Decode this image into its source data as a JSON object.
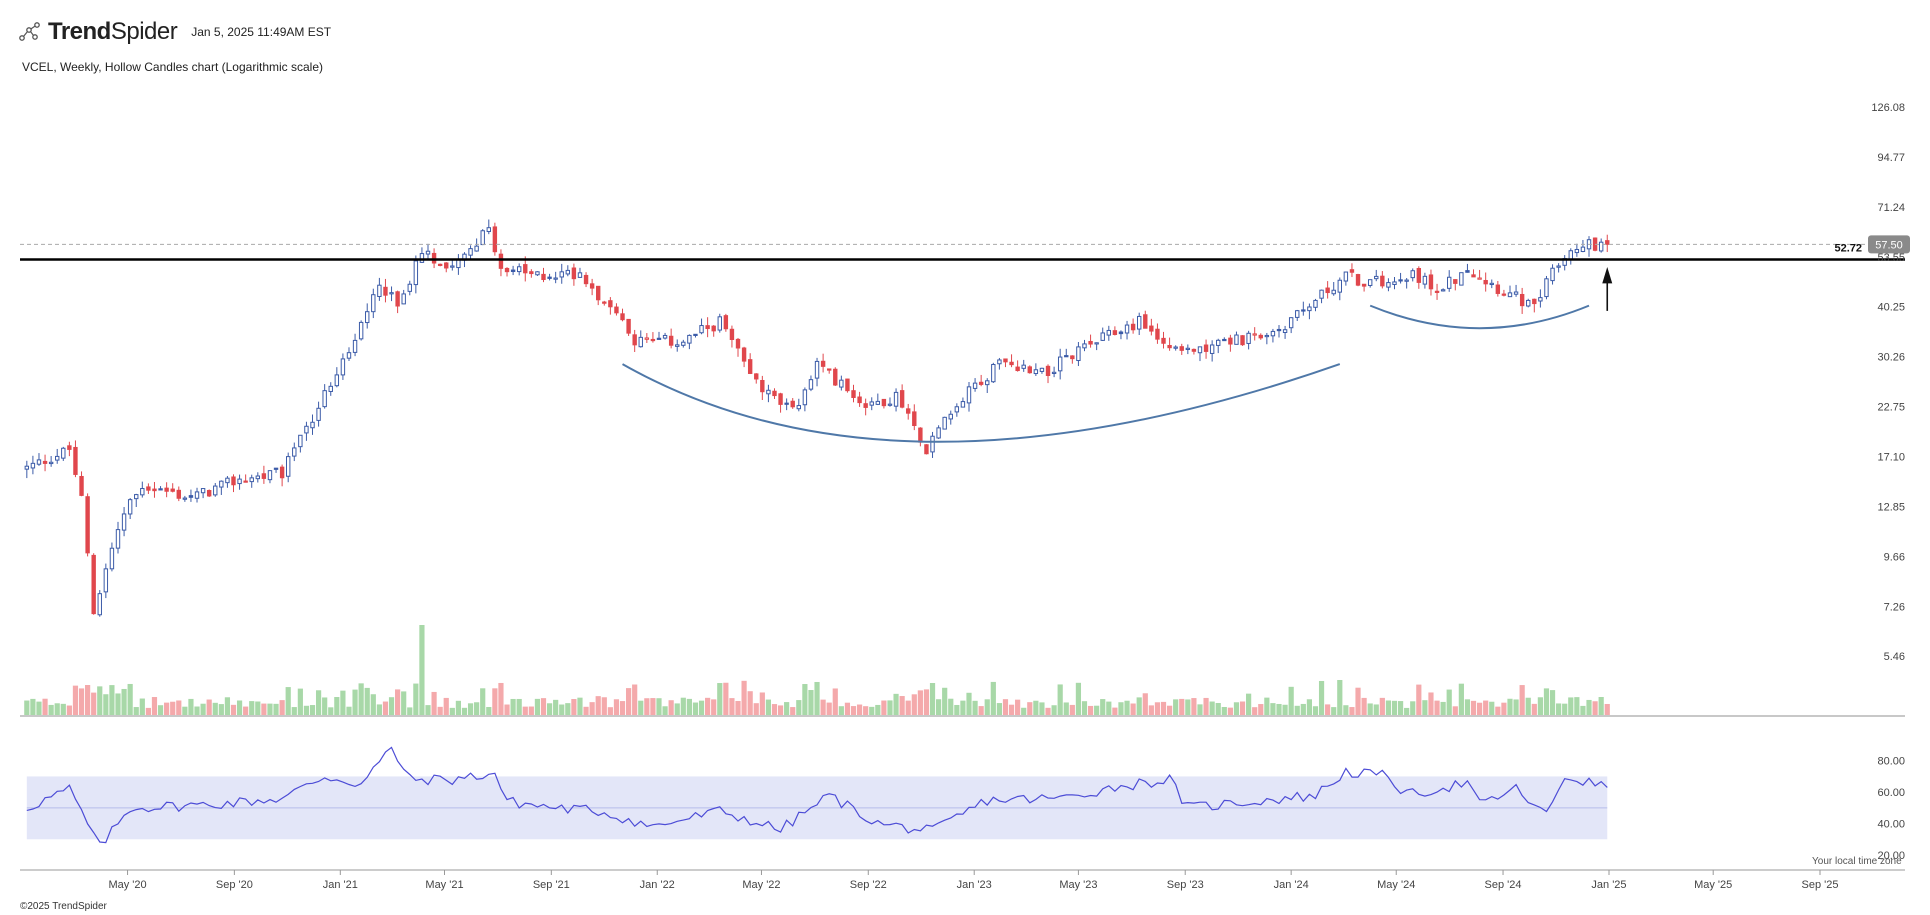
{
  "header": {
    "brand_bold": "Trend",
    "brand_light": "Spider",
    "timestamp": "Jan 5, 2025 11:49AM EST"
  },
  "subtitle": "VCEL, Weekly, Hollow Candles chart (Logarithmic scale)",
  "footer": {
    "copyright": "©2025 TrendSpider",
    "local_time_note": "Your local time zone"
  },
  "colors": {
    "up": "#3b5ba8",
    "down": "#e0474c",
    "vol_up": "#a8d8a8",
    "vol_down": "#f4a9ab",
    "rsi_line": "#4c4cd6",
    "rsi_band": "#e3e6f8",
    "arc": "#4f78a8",
    "support": "#000000"
  },
  "chart_data": [
    {
      "type": "candlestick",
      "title": "VCEL, Weekly, Hollow Candles chart (Logarithmic scale)",
      "y_scale": "log",
      "ylim": [
        4.3,
        135
      ],
      "y_ticks": [
        "126.08",
        "94.77",
        "71.24",
        "53.55",
        "40.25",
        "30.26",
        "22.75",
        "17.10",
        "12.85",
        "9.66",
        "7.26",
        "5.46"
      ],
      "x_ticks": [
        "May '20",
        "Sep '20",
        "Jan '21",
        "May '21",
        "Sep '21",
        "Jan '22",
        "May '22",
        "Sep '22",
        "Jan '23",
        "May '23",
        "Sep '23",
        "Jan '24",
        "May '24",
        "Sep '24",
        "Jan '25",
        "May '25",
        "Sep '25"
      ],
      "support_line": {
        "value": 52.72,
        "label": "52.72"
      },
      "last_price": {
        "value": 57.5,
        "label": "57.50"
      },
      "annotations": [
        "rounded bottom arc (Nov '21 – Mar '24)",
        "rounded bottom arc (Apr '24 – Dec '24)",
        "up arrow near Jan '25"
      ],
      "close_path": [
        {
          "date": "2020-01-06",
          "close": 16.0
        },
        {
          "date": "2020-02-24",
          "close": 17.8
        },
        {
          "date": "2020-03-09",
          "close": 13.5
        },
        {
          "date": "2020-03-23",
          "close": 7.0
        },
        {
          "date": "2020-04-20",
          "close": 11.5
        },
        {
          "date": "2020-05-18",
          "close": 14.5
        },
        {
          "date": "2020-07-13",
          "close": 13.5
        },
        {
          "date": "2020-09-07",
          "close": 15.0
        },
        {
          "date": "2020-10-26",
          "close": 15.5
        },
        {
          "date": "2020-11-23",
          "close": 20.0
        },
        {
          "date": "2020-12-21",
          "close": 26.0
        },
        {
          "date": "2021-01-18",
          "close": 33.0
        },
        {
          "date": "2021-02-15",
          "close": 47.0
        },
        {
          "date": "2021-03-08",
          "close": 40.0
        },
        {
          "date": "2021-04-05",
          "close": 55.0
        },
        {
          "date": "2021-05-03",
          "close": 51.0
        },
        {
          "date": "2021-06-21",
          "close": 62.0
        },
        {
          "date": "2021-07-05",
          "close": 50.0
        },
        {
          "date": "2021-08-16",
          "close": 48.0
        },
        {
          "date": "2021-10-04",
          "close": 49.0
        },
        {
          "date": "2021-11-08",
          "close": 40.0
        },
        {
          "date": "2021-12-06",
          "close": 33.0
        },
        {
          "date": "2022-01-31",
          "close": 33.0
        },
        {
          "date": "2022-03-14",
          "close": 37.0
        },
        {
          "date": "2022-05-02",
          "close": 25.0
        },
        {
          "date": "2022-06-06",
          "close": 22.0
        },
        {
          "date": "2022-07-04",
          "close": 29.0
        },
        {
          "date": "2022-08-29",
          "close": 23.0
        },
        {
          "date": "2022-10-03",
          "close": 24.0
        },
        {
          "date": "2022-11-07",
          "close": 18.0
        },
        {
          "date": "2022-12-19",
          "close": 24.0
        },
        {
          "date": "2023-01-30",
          "close": 29.0
        },
        {
          "date": "2023-03-27",
          "close": 28.0
        },
        {
          "date": "2023-05-22",
          "close": 33.0
        },
        {
          "date": "2023-07-10",
          "close": 37.0
        },
        {
          "date": "2023-08-21",
          "close": 31.0
        },
        {
          "date": "2023-10-16",
          "close": 33.0
        },
        {
          "date": "2023-12-11",
          "close": 34.0
        },
        {
          "date": "2024-01-29",
          "close": 42.0
        },
        {
          "date": "2024-03-04",
          "close": 48.0
        },
        {
          "date": "2024-04-01",
          "close": 46.0
        },
        {
          "date": "2024-05-20",
          "close": 49.0
        },
        {
          "date": "2024-06-17",
          "close": 44.0
        },
        {
          "date": "2024-07-22",
          "close": 50.0
        },
        {
          "date": "2024-09-02",
          "close": 44.0
        },
        {
          "date": "2024-10-07",
          "close": 40.0
        },
        {
          "date": "2024-10-28",
          "close": 50.0
        },
        {
          "date": "2024-11-18",
          "close": 57.0
        },
        {
          "date": "2024-12-30",
          "close": 57.5
        }
      ]
    },
    {
      "type": "bar",
      "title": "Volume",
      "volume_spike_dates": [
        "2020-03-16",
        "2021-04-05",
        "2022-11-14",
        "2024-02-26"
      ]
    },
    {
      "type": "line",
      "title": "RSI",
      "ylim": [
        20,
        90
      ],
      "y_ticks": [
        "80.00",
        "60.00",
        "40.00",
        "20.00"
      ],
      "band": [
        30,
        70
      ],
      "mid_line": 50,
      "series": [
        {
          "date": "2020-01-06",
          "value": 50
        },
        {
          "date": "2020-02-24",
          "value": 62
        },
        {
          "date": "2020-03-30",
          "value": 25
        },
        {
          "date": "2020-05-04",
          "value": 50
        },
        {
          "date": "2020-08-03",
          "value": 52
        },
        {
          "date": "2020-10-26",
          "value": 56
        },
        {
          "date": "2020-12-14",
          "value": 70
        },
        {
          "date": "2021-01-25",
          "value": 65
        },
        {
          "date": "2021-03-01",
          "value": 88
        },
        {
          "date": "2021-03-22",
          "value": 68
        },
        {
          "date": "2021-05-10",
          "value": 68
        },
        {
          "date": "2021-06-28",
          "value": 72
        },
        {
          "date": "2021-07-12",
          "value": 54
        },
        {
          "date": "2021-09-06",
          "value": 50
        },
        {
          "date": "2021-10-25",
          "value": 48
        },
        {
          "date": "2021-12-27",
          "value": 38
        },
        {
          "date": "2022-03-14",
          "value": 48
        },
        {
          "date": "2022-05-23",
          "value": 36
        },
        {
          "date": "2022-07-18",
          "value": 58
        },
        {
          "date": "2022-09-12",
          "value": 40
        },
        {
          "date": "2022-11-14",
          "value": 35
        },
        {
          "date": "2023-01-16",
          "value": 55
        },
        {
          "date": "2023-04-10",
          "value": 56
        },
        {
          "date": "2023-06-19",
          "value": 64
        },
        {
          "date": "2023-08-14",
          "value": 68
        },
        {
          "date": "2023-09-04",
          "value": 50
        },
        {
          "date": "2023-12-04",
          "value": 55
        },
        {
          "date": "2024-01-29",
          "value": 58
        },
        {
          "date": "2024-03-04",
          "value": 73
        },
        {
          "date": "2024-04-22",
          "value": 70
        },
        {
          "date": "2024-05-13",
          "value": 58
        },
        {
          "date": "2024-07-22",
          "value": 66
        },
        {
          "date": "2024-08-05",
          "value": 52
        },
        {
          "date": "2024-09-16",
          "value": 62
        },
        {
          "date": "2024-10-21",
          "value": 45
        },
        {
          "date": "2024-11-11",
          "value": 70
        },
        {
          "date": "2024-12-30",
          "value": 63
        }
      ]
    }
  ]
}
